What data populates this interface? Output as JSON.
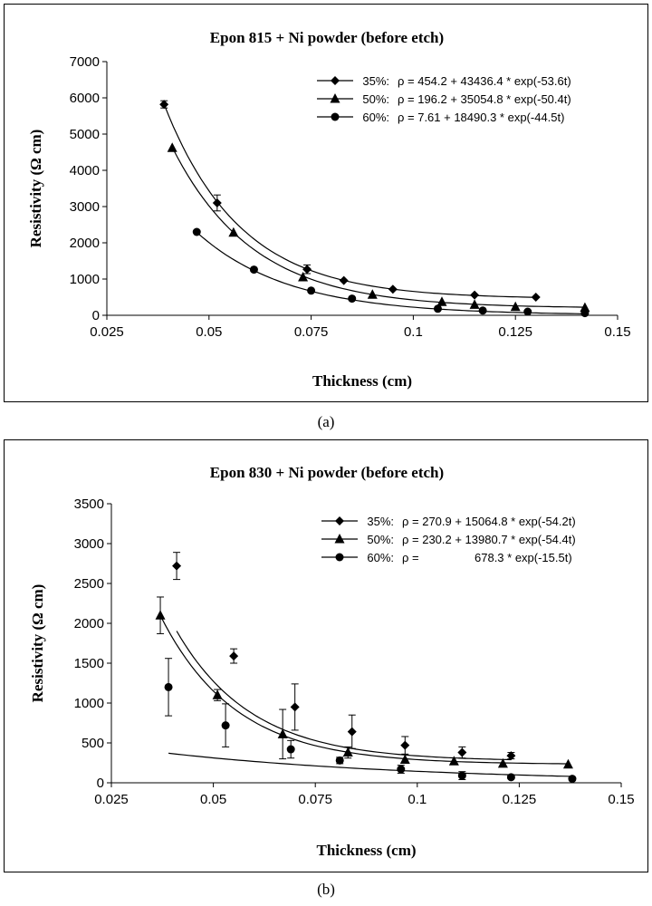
{
  "captions": {
    "a": "(a)",
    "b": "(b)"
  },
  "chart_data": [
    {
      "type": "scatter",
      "title": "Epon 815 + Ni powder (before etch)",
      "xlabel": "Thickness (cm)",
      "ylabel": "Resistivity (Ω cm)",
      "xlim": [
        0.025,
        0.15
      ],
      "ylim": [
        0,
        7000
      ],
      "xticks": [
        0.025,
        0.05,
        0.075,
        0.1,
        0.125,
        0.15
      ],
      "xtick_labels": [
        "0.025",
        "0.05",
        "0.075",
        "0.1",
        "0.125",
        "0.15"
      ],
      "yticks": [
        0,
        1000,
        2000,
        3000,
        4000,
        5000,
        6000,
        7000
      ],
      "ytick_labels": [
        "0",
        "1000",
        "2000",
        "3000",
        "4000",
        "5000",
        "6000",
        "7000"
      ],
      "legend_position": "top-right",
      "series": [
        {
          "name": "35%:",
          "marker": "diamond",
          "fit": {
            "a": 454.2,
            "b": 43436.4,
            "k": 53.6
          },
          "equation": "ρ = 454.2 + 43436.4 * exp(-53.6t)",
          "x": [
            0.039,
            0.052,
            0.074,
            0.083,
            0.095,
            0.115,
            0.13
          ],
          "y": [
            5820,
            3100,
            1270,
            960,
            720,
            560,
            500
          ],
          "err": [
            100,
            220,
            120,
            0,
            0,
            0,
            0
          ]
        },
        {
          "name": "50%:",
          "marker": "triangle",
          "fit": {
            "a": 196.2,
            "b": 35054.8,
            "k": 50.4
          },
          "equation": "ρ = 196.2 + 35054.8 * exp(-50.4t)",
          "x": [
            0.041,
            0.056,
            0.073,
            0.09,
            0.107,
            0.115,
            0.125,
            0.142
          ],
          "y": [
            4620,
            2280,
            1050,
            570,
            370,
            290,
            230,
            210
          ],
          "err": [
            0,
            0,
            0,
            0,
            0,
            0,
            0,
            0
          ]
        },
        {
          "name": "60%:",
          "marker": "circle",
          "fit": {
            "a": 7.61,
            "b": 18490.3,
            "k": 44.5
          },
          "equation": "ρ = 7.61 + 18490.3 * exp(-44.5t)",
          "x": [
            0.047,
            0.061,
            0.075,
            0.085,
            0.106,
            0.117,
            0.128,
            0.142
          ],
          "y": [
            2300,
            1260,
            680,
            460,
            180,
            130,
            100,
            60
          ],
          "err": [
            0,
            0,
            0,
            0,
            0,
            0,
            0,
            0
          ]
        }
      ]
    },
    {
      "type": "scatter",
      "title": "Epon 830 + Ni powder (before etch)",
      "xlabel": "Thickness (cm)",
      "ylabel": "Resistivity (Ω cm)",
      "xlim": [
        0.025,
        0.15
      ],
      "ylim": [
        0,
        3500
      ],
      "xticks": [
        0.025,
        0.05,
        0.075,
        0.1,
        0.125,
        0.15
      ],
      "xtick_labels": [
        "0.025",
        "0.05",
        "0.075",
        "0.1",
        "0.125",
        "0.15"
      ],
      "yticks": [
        0,
        500,
        1000,
        1500,
        2000,
        2500,
        3000,
        3500
      ],
      "ytick_labels": [
        "0",
        "500",
        "1000",
        "1500",
        "2000",
        "2500",
        "3000",
        "3500"
      ],
      "legend_position": "top-right",
      "series": [
        {
          "name": "35%:",
          "marker": "diamond",
          "fit": {
            "a": 270.9,
            "b": 15064.8,
            "k": 54.2
          },
          "equation": "ρ = 270.9 + 15064.8 * exp(-54.2t)",
          "x": [
            0.041,
            0.055,
            0.07,
            0.084,
            0.097,
            0.111,
            0.123
          ],
          "y": [
            2720,
            1590,
            950,
            640,
            470,
            380,
            340
          ],
          "err": [
            170,
            90,
            290,
            210,
            110,
            70,
            40
          ]
        },
        {
          "name": "50%:",
          "marker": "triangle",
          "fit": {
            "a": 230.2,
            "b": 13980.7,
            "k": 54.4
          },
          "equation": "ρ = 230.2 + 13980.7 * exp(-54.4t)",
          "x": [
            0.037,
            0.051,
            0.067,
            0.083,
            0.097,
            0.109,
            0.121,
            0.137
          ],
          "y": [
            2100,
            1100,
            610,
            380,
            290,
            270,
            240,
            230
          ],
          "err": [
            230,
            70,
            310,
            70,
            0,
            0,
            0,
            0
          ]
        },
        {
          "name": "60%:",
          "marker": "circle",
          "fit": {
            "a": 0,
            "b": 678.3,
            "k": 15.5
          },
          "equation": "ρ =                 678.3 * exp(-15.5t)",
          "x": [
            0.039,
            0.053,
            0.069,
            0.081,
            0.096,
            0.111,
            0.123,
            0.138
          ],
          "y": [
            1200,
            720,
            420,
            280,
            170,
            90,
            70,
            50
          ],
          "err": [
            360,
            270,
            110,
            40,
            50,
            50,
            20,
            0
          ]
        }
      ]
    }
  ]
}
